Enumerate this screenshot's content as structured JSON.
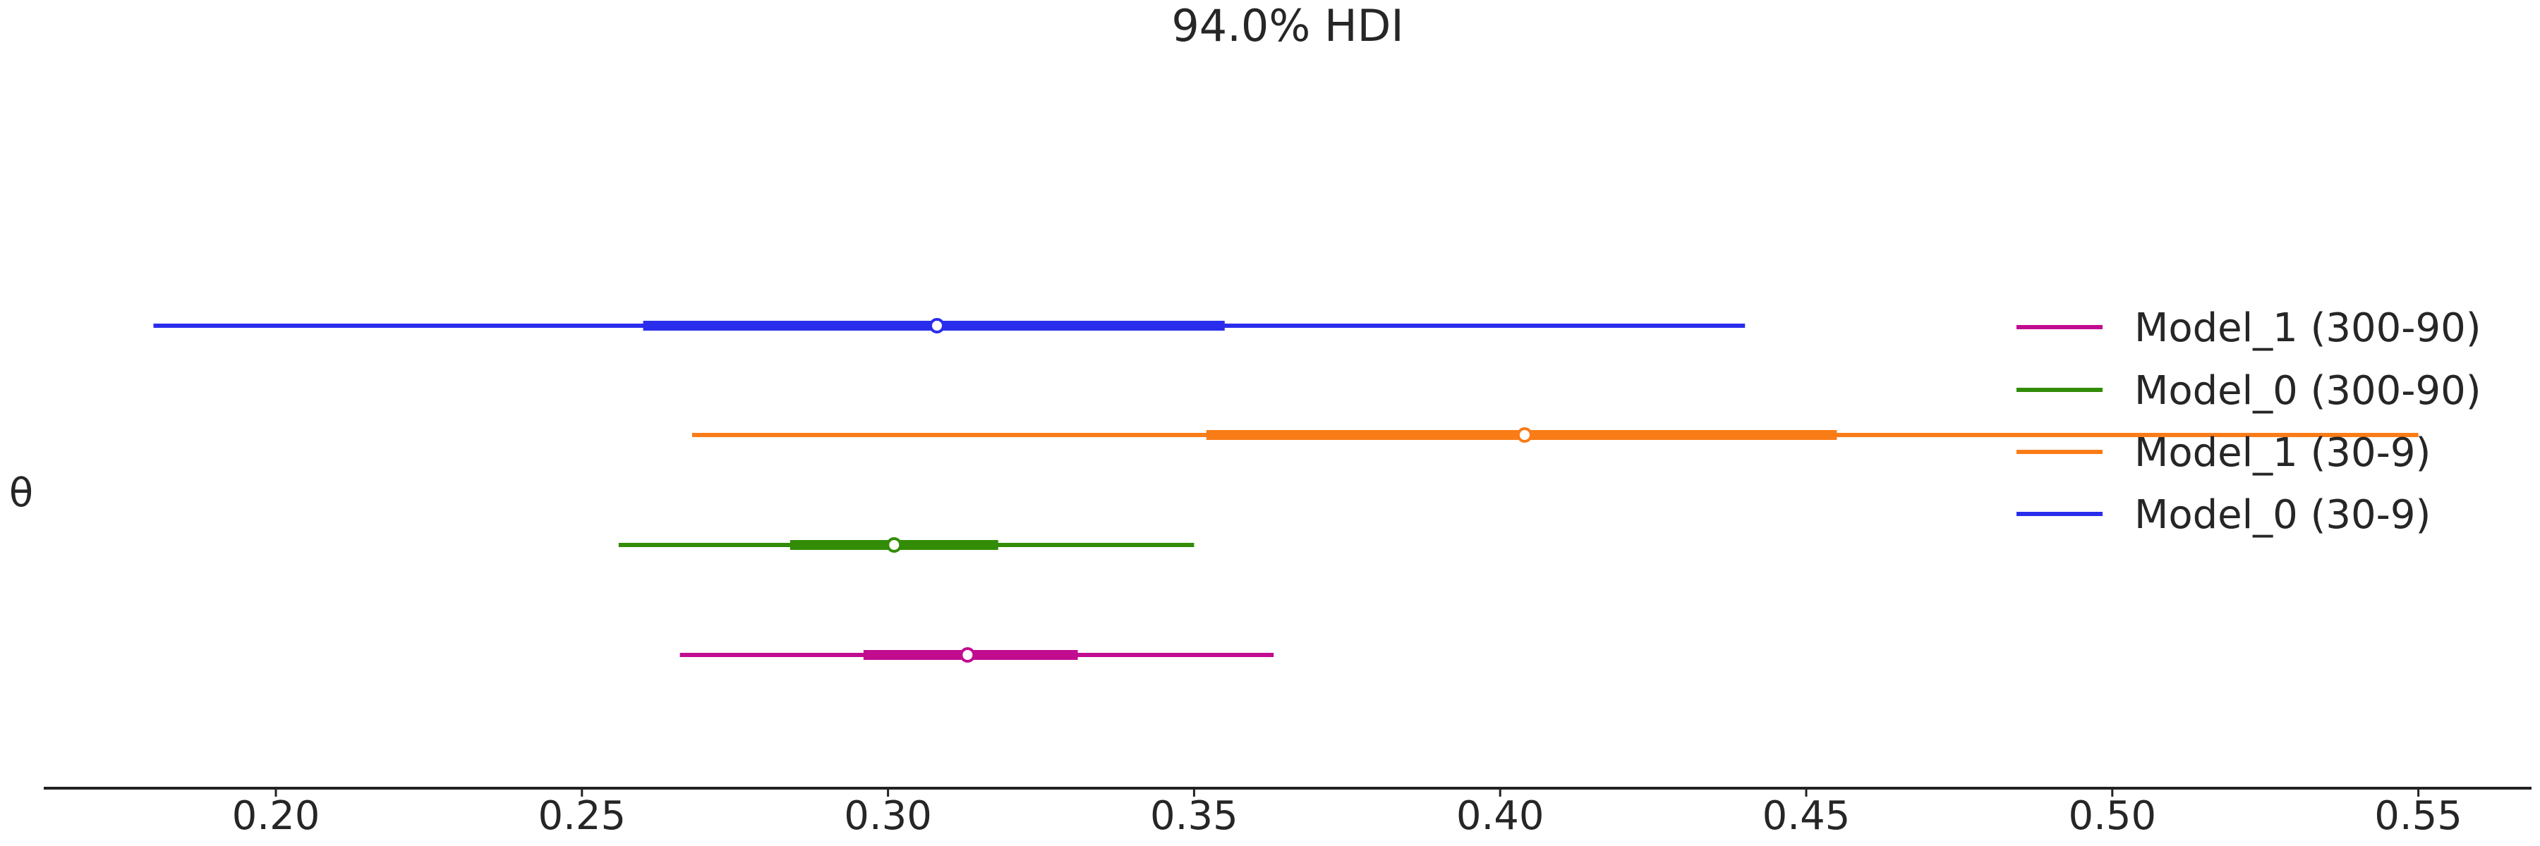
{
  "chart_data": {
    "type": "forest",
    "title": "94.0% HDI",
    "ylabel": "θ",
    "xlabel": "",
    "xlim": [
      0.16,
      0.57
    ],
    "x_ticks": [
      "0.20",
      "0.25",
      "0.30",
      "0.35",
      "0.40",
      "0.45",
      "0.50",
      "0.55"
    ],
    "x_tick_values": [
      0.2,
      0.25,
      0.3,
      0.35,
      0.4,
      0.45,
      0.5,
      0.55
    ],
    "grid": false,
    "legend_position": "right",
    "series": [
      {
        "name": "Model_0 (30-9)",
        "color": "#2a2eec",
        "hdi_94": [
          0.18,
          0.44
        ],
        "iqr": [
          0.26,
          0.355
        ],
        "point_estimate": 0.308
      },
      {
        "name": "Model_1 (30-9)",
        "color": "#fa7c17",
        "hdi_94": [
          0.268,
          0.55
        ],
        "iqr": [
          0.352,
          0.455
        ],
        "point_estimate": 0.404
      },
      {
        "name": "Model_0 (300-90)",
        "color": "#328c06",
        "hdi_94": [
          0.256,
          0.35
        ],
        "iqr": [
          0.284,
          0.318
        ],
        "point_estimate": 0.301
      },
      {
        "name": "Model_1 (300-90)",
        "color": "#c10c90",
        "hdi_94": [
          0.266,
          0.363
        ],
        "iqr": [
          0.296,
          0.331
        ],
        "point_estimate": 0.313
      }
    ],
    "legend_order": [
      "Model_1 (300-90)",
      "Model_0 (300-90)",
      "Model_1 (30-9)",
      "Model_0 (30-9)"
    ]
  }
}
